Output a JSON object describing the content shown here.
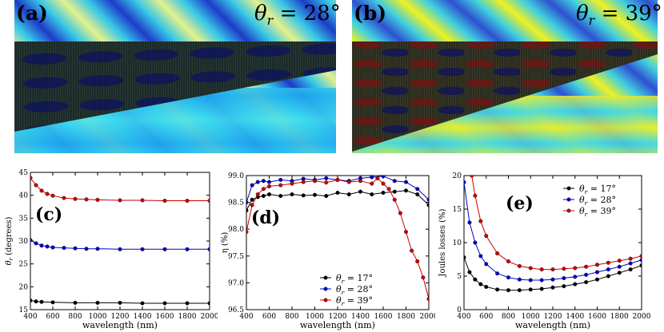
{
  "figure": {
    "panels": [
      {
        "label": "(a)",
        "theta_text": "θ",
        "theta_sub": "r",
        "theta_value": " = 28°"
      },
      {
        "label": "(b)",
        "theta_text": "θ",
        "theta_sub": "r",
        "theta_value": " = 39°"
      }
    ]
  },
  "colors": {
    "series_17": "#000000",
    "series_28": "#0000cc",
    "series_39": "#cc0000",
    "field_low": "#1a2aa8",
    "field_mid": "#2fd0e6",
    "field_high": "#f2f21a"
  },
  "chart_data": [
    {
      "id": "c",
      "label": "(c)",
      "type": "line",
      "xlabel": "wavelength (nm)",
      "ylabel": "θr (degrees)",
      "xlim": [
        400,
        2000
      ],
      "ylim": [
        15,
        45
      ],
      "xticks": [
        400,
        600,
        800,
        1000,
        1200,
        1400,
        1600,
        1800,
        2000
      ],
      "yticks": [
        15,
        20,
        25,
        30,
        35,
        40,
        45
      ],
      "series": [
        {
          "name": "θr = 39°",
          "color": "#cc0000",
          "x": [
            400,
            450,
            500,
            550,
            600,
            700,
            800,
            900,
            1000,
            1200,
            1400,
            1600,
            1800,
            2000
          ],
          "y": [
            43.8,
            42.2,
            41.0,
            40.3,
            39.9,
            39.4,
            39.2,
            39.1,
            39.0,
            38.9,
            38.9,
            38.8,
            38.8,
            38.8
          ]
        },
        {
          "name": "θr = 28°",
          "color": "#0000cc",
          "x": [
            400,
            450,
            500,
            550,
            600,
            700,
            800,
            900,
            1000,
            1200,
            1400,
            1600,
            1800,
            2000
          ],
          "y": [
            30.2,
            29.5,
            29.0,
            28.8,
            28.6,
            28.5,
            28.4,
            28.3,
            28.3,
            28.2,
            28.2,
            28.2,
            28.2,
            28.2
          ]
        },
        {
          "name": "θr = 17°",
          "color": "#000000",
          "x": [
            400,
            450,
            500,
            600,
            800,
            1000,
            1200,
            1400,
            1600,
            1800,
            2000
          ],
          "y": [
            17.0,
            16.8,
            16.7,
            16.6,
            16.5,
            16.5,
            16.5,
            16.4,
            16.4,
            16.4,
            16.4
          ]
        }
      ]
    },
    {
      "id": "d",
      "label": "(d)",
      "type": "line",
      "xlabel": "wavelength (nm)",
      "ylabel": "η (%)",
      "xlim": [
        400,
        2000
      ],
      "ylim": [
        96.5,
        99.0
      ],
      "xticks": [
        400,
        600,
        800,
        1000,
        1200,
        1400,
        1600,
        1800,
        2000
      ],
      "yticks": [
        96.5,
        97.0,
        97.5,
        98.0,
        98.5,
        99.0
      ],
      "legend": [
        {
          "name": "θr = 17°",
          "color": "#000000"
        },
        {
          "name": "θr = 28°",
          "color": "#0000cc"
        },
        {
          "name": "θr = 39°",
          "color": "#cc0000"
        }
      ],
      "series": [
        {
          "name": "θr = 17°",
          "color": "#000000",
          "x": [
            400,
            450,
            500,
            550,
            600,
            700,
            800,
            900,
            1000,
            1100,
            1200,
            1300,
            1400,
            1500,
            1600,
            1700,
            1800,
            1900,
            2000
          ],
          "y": [
            98.35,
            98.55,
            98.6,
            98.62,
            98.65,
            98.62,
            98.65,
            98.63,
            98.64,
            98.62,
            98.68,
            98.65,
            98.7,
            98.65,
            98.68,
            98.7,
            98.72,
            98.65,
            98.45
          ]
        },
        {
          "name": "θr = 28°",
          "color": "#0000cc",
          "x": [
            400,
            450,
            500,
            550,
            600,
            700,
            800,
            900,
            1000,
            1100,
            1200,
            1300,
            1400,
            1500,
            1600,
            1700,
            1800,
            1900,
            2000
          ],
          "y": [
            98.5,
            98.82,
            98.88,
            98.9,
            98.88,
            98.92,
            98.9,
            98.94,
            98.92,
            98.95,
            98.92,
            98.9,
            98.95,
            98.97,
            98.99,
            98.9,
            98.88,
            98.75,
            98.55
          ]
        },
        {
          "name": "θr = 39°",
          "color": "#cc0000",
          "x": [
            400,
            450,
            500,
            550,
            600,
            700,
            800,
            900,
            1000,
            1100,
            1200,
            1300,
            1400,
            1500,
            1550,
            1600,
            1650,
            1700,
            1750,
            1800,
            1850,
            1900,
            1950,
            2000
          ],
          "y": [
            97.95,
            98.45,
            98.65,
            98.75,
            98.8,
            98.82,
            98.85,
            98.88,
            98.9,
            98.87,
            98.92,
            98.88,
            98.9,
            98.85,
            98.95,
            98.85,
            98.75,
            98.55,
            98.3,
            97.95,
            97.6,
            97.4,
            97.1,
            96.7
          ]
        }
      ]
    },
    {
      "id": "e",
      "label": "(e)",
      "type": "line",
      "xlabel": "wavelength (nm)",
      "ylabel": "Joules losses (%)",
      "xlim": [
        400,
        2000
      ],
      "ylim": [
        0,
        20
      ],
      "xticks": [
        400,
        600,
        800,
        1000,
        1200,
        1400,
        1600,
        1800,
        2000
      ],
      "yticks": [
        0,
        5,
        10,
        15,
        20
      ],
      "legend": [
        {
          "name": "θr = 17°",
          "color": "#000000"
        },
        {
          "name": "θr = 28°",
          "color": "#0000cc"
        },
        {
          "name": "θr = 39°",
          "color": "#cc0000"
        }
      ],
      "series": [
        {
          "name": "θr = 17°",
          "color": "#000000",
          "x": [
            400,
            450,
            500,
            550,
            600,
            700,
            800,
            900,
            1000,
            1100,
            1200,
            1300,
            1400,
            1500,
            1600,
            1700,
            1800,
            1900,
            2000
          ],
          "y": [
            7.8,
            5.6,
            4.5,
            3.8,
            3.4,
            3.0,
            2.9,
            2.9,
            3.0,
            3.1,
            3.3,
            3.5,
            3.8,
            4.1,
            4.5,
            5.0,
            5.5,
            6.0,
            6.6
          ]
        },
        {
          "name": "θr = 28°",
          "color": "#0000cc",
          "x": [
            400,
            450,
            500,
            550,
            600,
            700,
            800,
            900,
            1000,
            1100,
            1200,
            1300,
            1400,
            1500,
            1600,
            1700,
            1800,
            1900,
            2000
          ],
          "y": [
            19.0,
            13.0,
            10.0,
            8.0,
            6.8,
            5.4,
            4.8,
            4.5,
            4.4,
            4.4,
            4.5,
            4.7,
            4.9,
            5.2,
            5.6,
            6.0,
            6.4,
            6.9,
            7.4
          ]
        },
        {
          "name": "θr = 39°",
          "color": "#cc0000",
          "x": [
            470,
            500,
            550,
            600,
            700,
            800,
            900,
            1000,
            1100,
            1200,
            1300,
            1400,
            1500,
            1600,
            1700,
            1800,
            1900,
            2000
          ],
          "y": [
            20.0,
            17.0,
            13.2,
            11.0,
            8.4,
            7.2,
            6.5,
            6.2,
            6.0,
            6.0,
            6.1,
            6.2,
            6.4,
            6.7,
            7.0,
            7.3,
            7.6,
            8.0
          ]
        }
      ]
    }
  ]
}
